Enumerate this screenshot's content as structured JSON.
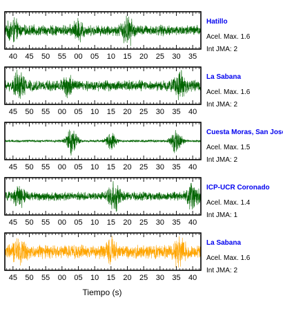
{
  "chart_data": {
    "type": "line",
    "xlabel": "Tiempo (s)",
    "panels": [
      {
        "station": "Hatillo",
        "accel": "Acel. Max. 1.6",
        "jma": "Int JMA: 2",
        "color": "#006400",
        "tick_labels": [
          "40",
          "45",
          "50",
          "55",
          "00",
          "05",
          "10",
          "15",
          "20",
          "25",
          "30",
          "35"
        ],
        "x_range_s": [
          37.5,
          97.5
        ],
        "first_tick_s": 40,
        "bursts": [
          {
            "t": 40,
            "amp": 0.6
          },
          {
            "t": 60,
            "amp": 0.5
          },
          {
            "t": 75,
            "amp": 0.9
          }
        ],
        "base_amp": 0.35
      },
      {
        "station": "La Sabana",
        "accel": "Acel. Max. 1.6",
        "jma": "Int JMA: 2",
        "color": "#006400",
        "tick_labels": [
          "45",
          "50",
          "55",
          "00",
          "05",
          "10",
          "15",
          "20",
          "25",
          "30",
          "35",
          "40"
        ],
        "x_range_s": [
          42.5,
          102.5
        ],
        "first_tick_s": 45,
        "bursts": [
          {
            "t": 47,
            "amp": 0.9
          },
          {
            "t": 62,
            "amp": 0.5
          },
          {
            "t": 96,
            "amp": 0.9
          }
        ],
        "base_amp": 0.35
      },
      {
        "station": "Cuesta Moras, San Jose",
        "accel": "Acel. Max. 1.5",
        "jma": "Int JMA: 2",
        "color": "#006400",
        "tick_labels": [
          "45",
          "50",
          "55",
          "00",
          "05",
          "10",
          "15",
          "20",
          "25",
          "30",
          "35",
          "40"
        ],
        "x_range_s": [
          42.5,
          102.5
        ],
        "first_tick_s": 45,
        "bursts": [
          {
            "t": 63,
            "amp": 1.0
          },
          {
            "t": 75,
            "amp": 0.6
          },
          {
            "t": 95,
            "amp": 0.8
          }
        ],
        "base_amp": 0.08
      },
      {
        "station": "ICP-UCR Coronado",
        "accel": "Acel. Max. 1.4",
        "jma": "Int JMA: 1",
        "color": "#006400",
        "tick_labels": [
          "45",
          "50",
          "55",
          "00",
          "05",
          "10",
          "15",
          "20",
          "25",
          "30",
          "35",
          "40"
        ],
        "x_range_s": [
          42.5,
          102.5
        ],
        "first_tick_s": 45,
        "bursts": [
          {
            "t": 47,
            "amp": 0.6
          },
          {
            "t": 76,
            "amp": 1.0
          },
          {
            "t": 100,
            "amp": 0.8
          }
        ],
        "base_amp": 0.28
      },
      {
        "station": "La Sabana",
        "accel": "Acel. Max. 1.6",
        "jma": "Int JMA: 2",
        "color": "#ffa500",
        "tick_labels": [
          "45",
          "50",
          "55",
          "00",
          "05",
          "10",
          "15",
          "20",
          "25",
          "30",
          "35",
          "40"
        ],
        "x_range_s": [
          42.5,
          102.5
        ],
        "first_tick_s": 45,
        "bursts": [
          {
            "t": 47,
            "amp": 0.9
          },
          {
            "t": 75,
            "amp": 0.6
          },
          {
            "t": 96,
            "amp": 0.9
          }
        ],
        "base_amp": 0.45
      }
    ]
  }
}
